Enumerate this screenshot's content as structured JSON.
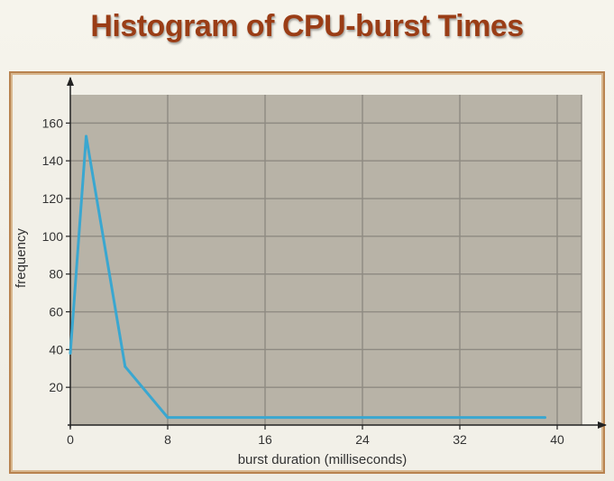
{
  "slide": {
    "title": "Histogram of CPU-burst Times"
  },
  "chart_data": {
    "type": "line",
    "title": "Histogram of CPU-burst Times",
    "xlabel": "burst duration (milliseconds)",
    "ylabel": "frequency",
    "xlim": [
      0,
      42
    ],
    "ylim": [
      0,
      175
    ],
    "x_ticks": [
      0,
      8,
      16,
      24,
      32,
      40
    ],
    "y_ticks": [
      20,
      40,
      60,
      80,
      100,
      120,
      140,
      160
    ],
    "grid": true,
    "series": [
      {
        "color": "#3aa7d0",
        "points": [
          [
            0,
            38
          ],
          [
            1.3,
            153
          ],
          [
            4.5,
            31
          ],
          [
            8,
            4
          ],
          [
            39,
            4
          ]
        ]
      }
    ]
  }
}
